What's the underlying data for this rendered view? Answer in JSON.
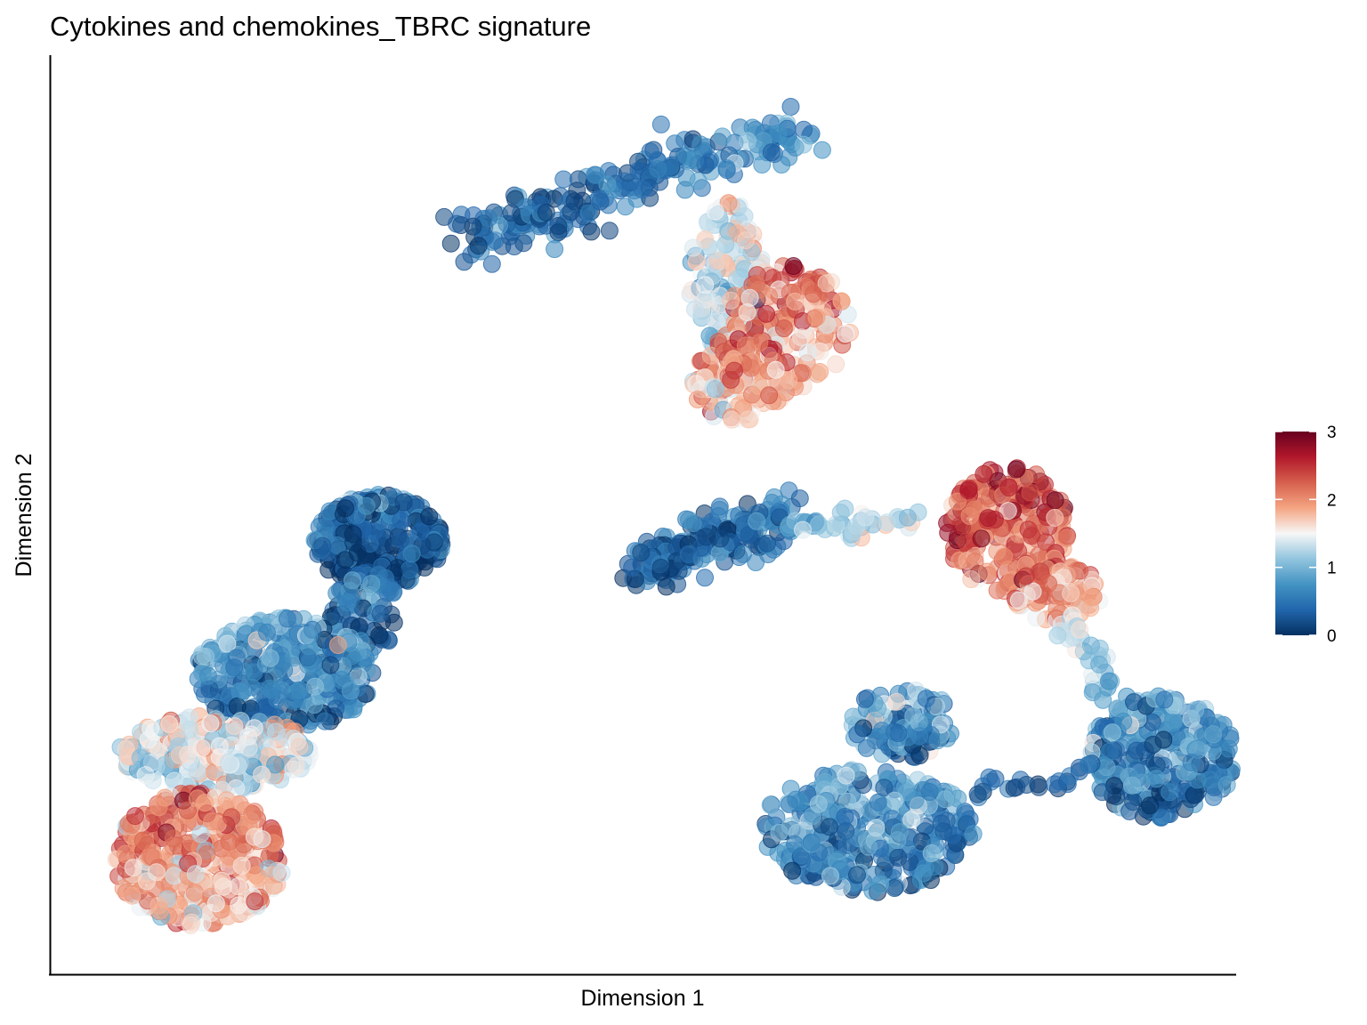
{
  "chart_data": {
    "type": "scatter",
    "title": "Cytokines and chemokines_TBRC signature",
    "xlabel": "Dimension 1",
    "ylabel": "Dimension 2",
    "xlim": [
      0,
      100
    ],
    "ylim": [
      0,
      100
    ],
    "ticks_shown": false,
    "grid": false,
    "legend_position": "right",
    "colorbar": {
      "min": 0,
      "max": 3,
      "ticks": [
        0,
        1,
        2,
        3
      ],
      "colors": [
        "#053061",
        "#2166ac",
        "#4393c3",
        "#92c5de",
        "#f7f7f7",
        "#f4a582",
        "#d6604d",
        "#b2182b",
        "#67001f"
      ]
    },
    "point_opacity": 0.55,
    "clusters": [
      {
        "id": "upper-middle-blue-arm",
        "shape": "polyline",
        "path": [
          [
            35.3,
            79.4
          ],
          [
            37.4,
            81.4
          ],
          [
            42.9,
            83.3
          ],
          [
            48.6,
            86.1
          ],
          [
            53.6,
            88.8
          ],
          [
            59.7,
            90.5
          ],
          [
            63.1,
            91.4
          ]
        ],
        "half_width": 2.6,
        "n": 230,
        "value_path": [
          0.3,
          0.4,
          0.3,
          0.35,
          0.6,
          0.8,
          0.6
        ]
      },
      {
        "id": "upper-middle-mixed-head",
        "shape": "blob",
        "cx": 57.0,
        "cy": 75.8,
        "rx": 3.2,
        "ry": 8.5,
        "n": 150,
        "value_path": [
          1.3
        ]
      },
      {
        "id": "upper-middle-red-head",
        "shape": "blob",
        "cx": 62.2,
        "cy": 70.6,
        "rx": 5.3,
        "ry": 6.8,
        "n": 170,
        "value_path": [
          1.95
        ]
      },
      {
        "id": "upper-middle-red-lower",
        "shape": "blob",
        "cx": 58.1,
        "cy": 64.8,
        "rx": 4.3,
        "ry": 5.0,
        "n": 150,
        "value_path": [
          1.9
        ]
      },
      {
        "id": "left-top-dark-blob",
        "shape": "blob",
        "cx": 27.6,
        "cy": 47.2,
        "rx": 5.5,
        "ry": 5.0,
        "n": 320,
        "value_path": [
          0.25
        ]
      },
      {
        "id": "left-neck",
        "shape": "blob",
        "cx": 26.3,
        "cy": 39.2,
        "rx": 3.0,
        "ry": 5.0,
        "n": 90,
        "value_path": [
          0.4
        ]
      },
      {
        "id": "left-mid-blue-blob",
        "shape": "blob",
        "cx": 19.7,
        "cy": 32.6,
        "rx": 7.5,
        "ry": 6.2,
        "n": 360,
        "value_path": [
          0.65
        ]
      },
      {
        "id": "left-transition",
        "shape": "blob",
        "cx": 13.9,
        "cy": 24.0,
        "rx": 8.2,
        "ry": 4.1,
        "n": 260,
        "value_path": [
          1.4
        ]
      },
      {
        "id": "left-bottom-red-blob",
        "shape": "blob",
        "cx": 12.4,
        "cy": 12.4,
        "rx": 7.2,
        "ry": 7.3,
        "n": 380,
        "value_path": [
          1.95
        ]
      },
      {
        "id": "right-middle-dark-band",
        "shape": "polyline",
        "path": [
          [
            49.4,
            44.2
          ],
          [
            52.0,
            45.1
          ],
          [
            55.6,
            47.1
          ],
          [
            59.0,
            48.7
          ],
          [
            62.4,
            49.2
          ]
        ],
        "half_width": 2.3,
        "n": 210,
        "value_path": [
          0.2,
          0.25,
          0.35,
          0.45,
          0.6
        ]
      },
      {
        "id": "right-middle-bridge",
        "shape": "polyline",
        "path": [
          [
            62.4,
            49.2
          ],
          [
            66.0,
            48.6
          ],
          [
            69.4,
            48.9
          ],
          [
            72.4,
            49.4
          ]
        ],
        "half_width": 1.3,
        "n": 40,
        "value_path": [
          0.8,
          1.1,
          1.3,
          1.5
        ]
      },
      {
        "id": "right-upper-red-tip",
        "shape": "blob",
        "cx": 80.8,
        "cy": 48.4,
        "rx": 5.2,
        "ry": 6.8,
        "n": 230,
        "value_path": [
          2.3
        ]
      },
      {
        "id": "right-upper-red-lower",
        "shape": "blob",
        "cx": 85.1,
        "cy": 41.2,
        "rx": 3.7,
        "ry": 3.3,
        "n": 90,
        "value_path": [
          1.9
        ]
      },
      {
        "id": "right-diagonal-link",
        "shape": "polyline",
        "path": [
          [
            85.7,
            38.4
          ],
          [
            87.2,
            35.6
          ],
          [
            89.2,
            31.4
          ],
          [
            90.4,
            27.8
          ]
        ],
        "half_width": 1.3,
        "n": 40,
        "value_path": [
          1.4,
          1.2,
          0.9,
          0.8
        ]
      },
      {
        "id": "right-blue-blob",
        "shape": "blob",
        "cx": 93.8,
        "cy": 23.6,
        "rx": 6.2,
        "ry": 6.8,
        "n": 330,
        "value_path": [
          0.6
        ]
      },
      {
        "id": "bottom-right-loose-cluster",
        "shape": "blob",
        "cx": 68.9,
        "cy": 15.5,
        "rx": 9.0,
        "ry": 6.8,
        "n": 380,
        "value_path": [
          0.7
        ]
      },
      {
        "id": "bottom-right-upper-loop",
        "shape": "blob",
        "cx": 71.9,
        "cy": 27.2,
        "rx": 4.5,
        "ry": 3.8,
        "n": 130,
        "value_path": [
          0.75
        ]
      },
      {
        "id": "bottom-bridge",
        "shape": "polyline",
        "path": [
          [
            77.8,
            20.4
          ],
          [
            81.5,
            19.8
          ],
          [
            85.0,
            20.4
          ],
          [
            88.2,
            22.2
          ]
        ],
        "half_width": 1.1,
        "n": 25,
        "value_path": [
          0.4,
          0.3,
          0.4,
          0.6
        ]
      }
    ]
  }
}
